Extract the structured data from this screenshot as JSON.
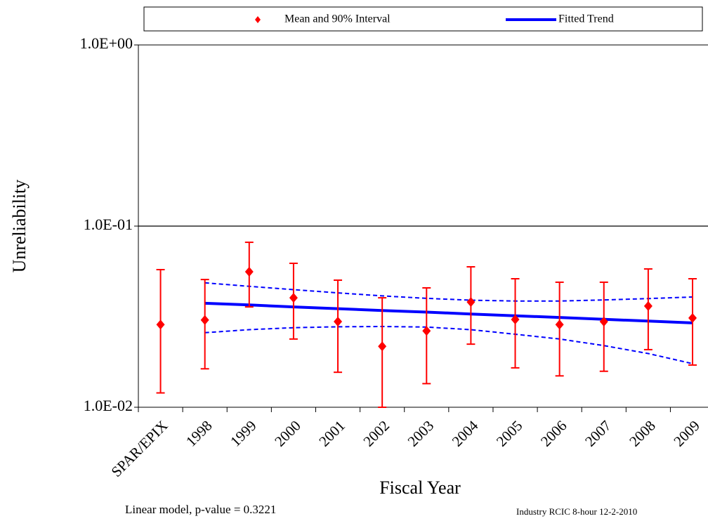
{
  "chart_data": {
    "type": "errorbar",
    "x_label": "Fiscal Year",
    "y_label": "Unreliability",
    "annotations": [
      "Linear model, p-value = 0.3221",
      "Industry RCIC 8-hour 12-2-2010"
    ],
    "categories": [
      "SPAR/EPIX",
      "1998",
      "1999",
      "2000",
      "2001",
      "2002",
      "2003",
      "2004",
      "2005",
      "2006",
      "2007",
      "2008",
      "2009"
    ],
    "log_scale": true,
    "ylim": [
      0.01,
      1
    ],
    "yticks": [
      {
        "value": 0.01,
        "label": "1.0E-02"
      },
      {
        "value": 0.1,
        "label": "1.0E-01"
      },
      {
        "value": 1,
        "label": "1.0E+00"
      }
    ],
    "grid": true,
    "legend": "top",
    "series": [
      {
        "name": "Mean and 90% Interval",
        "color": "#ff0000",
        "values": [
          0.0286,
          0.0303,
          0.056,
          0.0402,
          0.0297,
          0.0217,
          0.0264,
          0.0381,
          0.0305,
          0.0286,
          0.0297,
          0.0362,
          0.0311
        ],
        "lower": [
          0.012,
          0.0163,
          0.0358,
          0.0238,
          0.0156,
          0.01,
          0.0135,
          0.0223,
          0.0165,
          0.0149,
          0.0158,
          0.0208,
          0.0171
        ],
        "upper": [
          0.0575,
          0.0507,
          0.0814,
          0.0623,
          0.0503,
          0.0402,
          0.0456,
          0.0596,
          0.0512,
          0.049,
          0.049,
          0.058,
          0.0512
        ]
      },
      {
        "name": "Fitted Trend",
        "color": "#0000ff",
        "values": [
          null,
          0.0375,
          0.0367,
          0.0358,
          0.035,
          0.0342,
          0.0335,
          0.0327,
          0.032,
          0.0313,
          0.0306,
          0.0299,
          0.0292
        ],
        "lower": [
          null,
          0.0258,
          0.0268,
          0.0275,
          0.0278,
          0.0279,
          0.0277,
          0.0268,
          0.0253,
          0.0238,
          0.0219,
          0.0198,
          0.0174
        ],
        "upper": [
          null,
          0.0486,
          0.0465,
          0.0446,
          0.0428,
          0.0412,
          0.0399,
          0.039,
          0.0386,
          0.0386,
          0.0391,
          0.0398,
          0.0406
        ]
      }
    ]
  }
}
